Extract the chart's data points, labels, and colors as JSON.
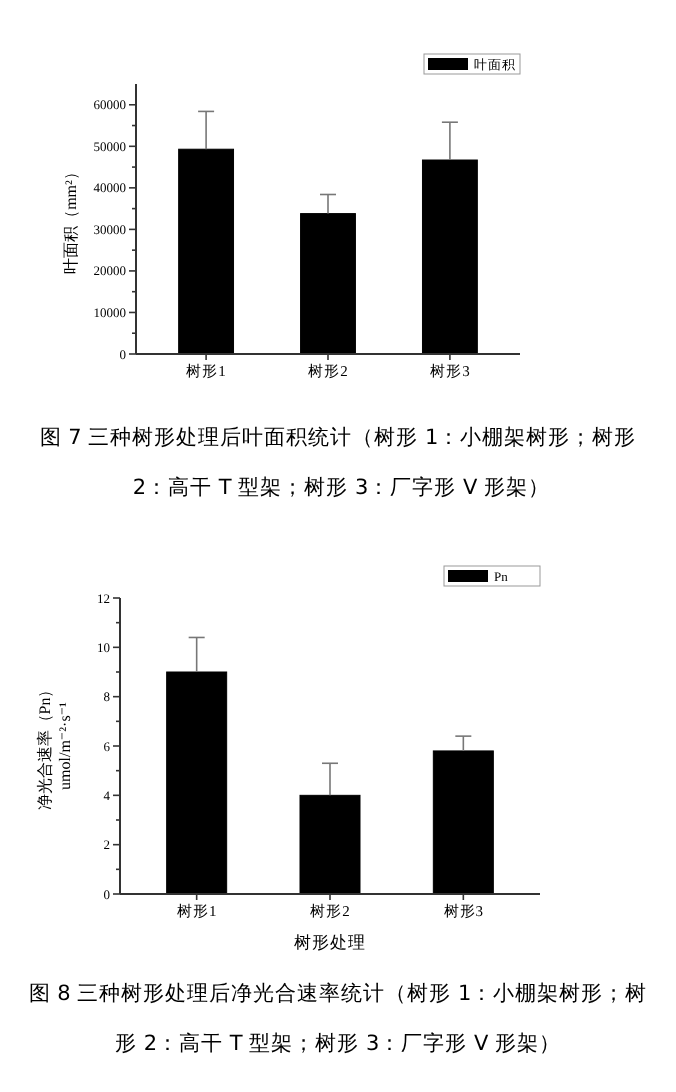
{
  "chart_data": [
    {
      "type": "bar",
      "ylabel": "叶面积（mm²）",
      "categories": [
        "树形1",
        "树形2",
        "树形3"
      ],
      "series": [
        {
          "name": "叶面积",
          "color": "#000000",
          "values": [
            49300,
            33800,
            46700
          ],
          "errors": [
            [
              49300,
              58400
            ],
            [
              33800,
              38400
            ],
            [
              46700,
              55800
            ]
          ]
        }
      ],
      "ylim": [
        0,
        65000
      ],
      "yticks": [
        0,
        {
          "value": 5000,
          "label": null
        },
        10000,
        {
          "value": 15000,
          "label": null
        },
        20000,
        {
          "value": 25000,
          "label": null
        },
        30000,
        {
          "value": 35000,
          "label": null
        },
        40000,
        {
          "value": 45000,
          "label": null
        },
        50000,
        {
          "value": 55000,
          "label": null
        },
        60000
      ],
      "legend": "top right",
      "grid": false,
      "annotations": [
        "图 7 三种树形处理后叶面积统计（树形 1：小棚架树形；树形 2：高干 T 型架；树形 3：厂字形 V 形架）"
      ]
    },
    {
      "type": "bar",
      "xlabel": "树形处理",
      "ylabel": "净光合速率（Pn）\numol/m⁻²·s⁻¹",
      "categories": [
        "树形1",
        "树形2",
        "树形3"
      ],
      "series": [
        {
          "name": "Pn",
          "color": "#000000",
          "values": [
            9.0,
            4.0,
            5.8
          ],
          "errors": [
            [
              9.0,
              10.4
            ],
            [
              4.0,
              5.3
            ],
            [
              5.8,
              6.4
            ]
          ]
        }
      ],
      "ylim": [
        0,
        12
      ],
      "yticks": [
        0,
        {
          "value": 1,
          "label": null
        },
        2,
        {
          "value": 3,
          "label": null
        },
        4,
        {
          "value": 5,
          "label": null
        },
        6,
        {
          "value": 7,
          "label": null
        },
        8,
        {
          "value": 9,
          "label": null
        },
        10,
        {
          "value": 11,
          "label": null
        },
        12
      ],
      "legend": "top right",
      "grid": false,
      "annotations": [
        "图 8 三种树形处理后净光合速率统计（树形 1：小棚架树形；树形 2：高干 T 型架；树形 3：厂字形 V 形架）"
      ]
    }
  ]
}
